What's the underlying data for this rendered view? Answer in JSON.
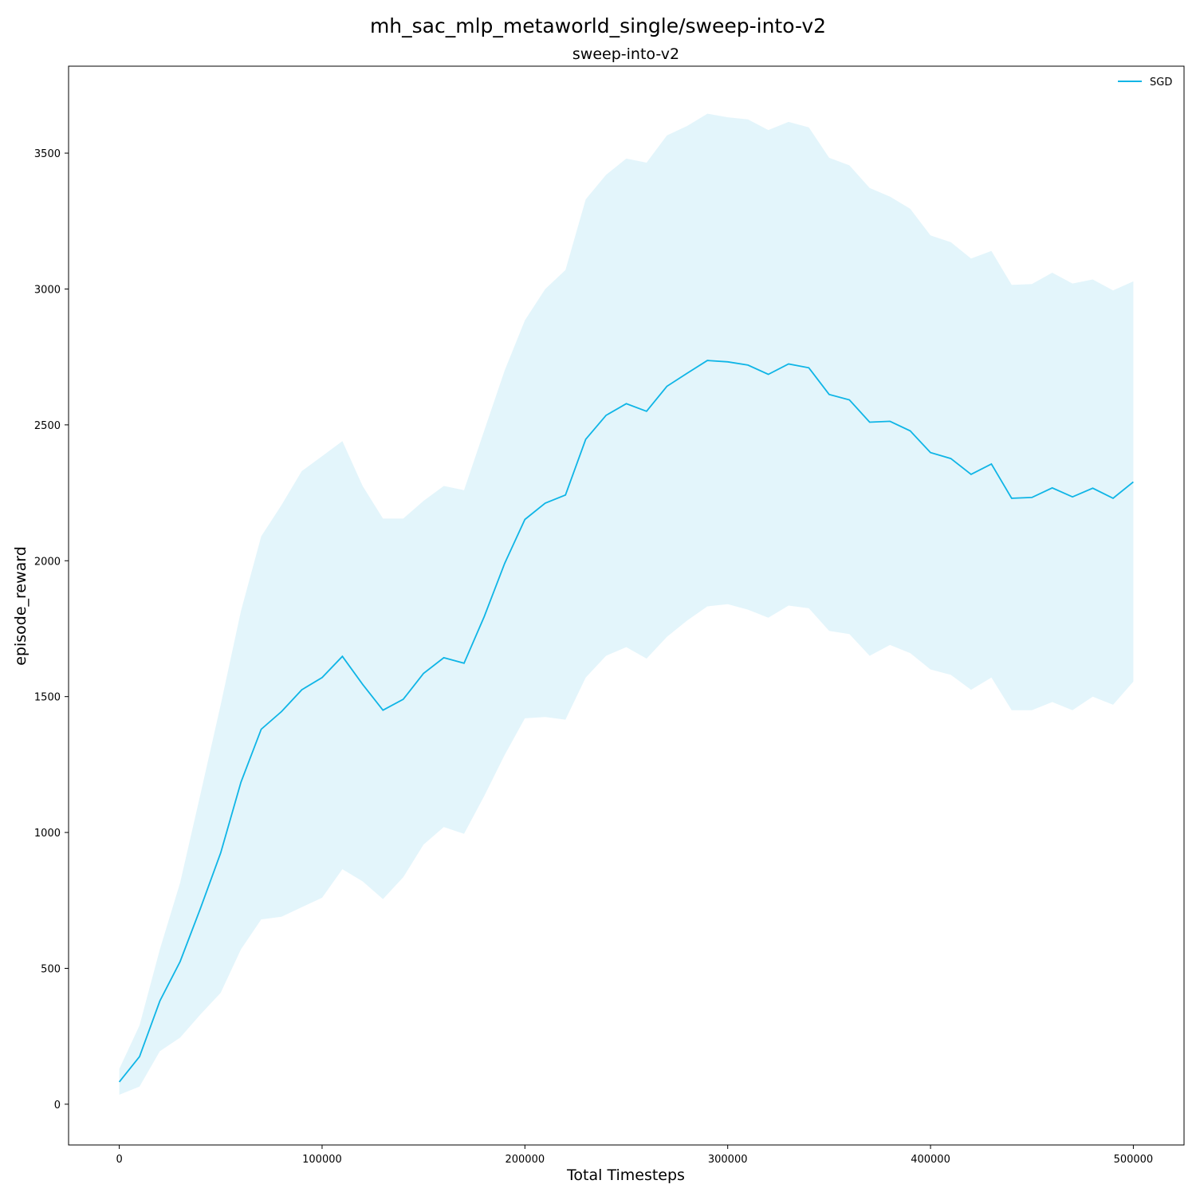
{
  "chart_data": {
    "type": "line",
    "suptitle": "mh_sac_mlp_metaworld_single/sweep-into-v2",
    "title": "sweep-into-v2",
    "xlabel": "Total Timesteps",
    "ylabel": "episode_reward",
    "xlim": [
      -25000,
      525000
    ],
    "ylim": [
      -150,
      3820
    ],
    "xticks": [
      0,
      100000,
      200000,
      300000,
      400000,
      500000
    ],
    "yticks": [
      0,
      500,
      1000,
      1500,
      2000,
      2500,
      3000,
      3500
    ],
    "grid": false,
    "legend_position": "top-right",
    "series": [
      {
        "name": "SGD",
        "color": "#0fb5e6",
        "band_color": "#e3f5fb",
        "x": [
          0,
          10000,
          20000,
          30000,
          40000,
          50000,
          60000,
          70000,
          80000,
          90000,
          100000,
          110000,
          120000,
          130000,
          140000,
          150000,
          160000,
          170000,
          180000,
          190000,
          200000,
          210000,
          220000,
          230000,
          240000,
          250000,
          260000,
          270000,
          280000,
          290000,
          300000,
          310000,
          320000,
          330000,
          340000,
          350000,
          360000,
          370000,
          380000,
          390000,
          400000,
          410000,
          420000,
          430000,
          440000,
          450000,
          460000,
          470000,
          480000,
          490000,
          500000
        ],
        "y": [
          82,
          175,
          380,
          525,
          720,
          925,
          1185,
          1380,
          1445,
          1525,
          1570,
          1648,
          1545,
          1450,
          1490,
          1585,
          1643,
          1623,
          1795,
          1990,
          2152,
          2212,
          2242,
          2447,
          2535,
          2578,
          2550,
          2642,
          2690,
          2737,
          2732,
          2720,
          2686,
          2724,
          2710,
          2612,
          2592,
          2510,
          2513,
          2478,
          2398,
          2376,
          2318,
          2356,
          2230,
          2233,
          2268,
          2235,
          2267,
          2230,
          2290
        ],
        "upper": [
          130,
          290,
          570,
          815,
          1140,
          1470,
          1815,
          2090,
          2205,
          2330,
          2385,
          2440,
          2275,
          2155,
          2155,
          2220,
          2275,
          2260,
          2480,
          2700,
          2885,
          3000,
          3070,
          3330,
          3420,
          3480,
          3465,
          3565,
          3600,
          3645,
          3632,
          3624,
          3585,
          3615,
          3595,
          3483,
          3455,
          3372,
          3340,
          3295,
          3197,
          3172,
          3112,
          3140,
          3015,
          3018,
          3060,
          3020,
          3035,
          2995,
          3028
        ],
        "lower": [
          35,
          65,
          195,
          245,
          330,
          410,
          570,
          680,
          690,
          725,
          760,
          865,
          820,
          755,
          835,
          955,
          1020,
          995,
          1135,
          1285,
          1420,
          1425,
          1415,
          1570,
          1650,
          1682,
          1640,
          1720,
          1780,
          1832,
          1840,
          1820,
          1790,
          1835,
          1825,
          1742,
          1730,
          1650,
          1690,
          1660,
          1600,
          1580,
          1525,
          1570,
          1450,
          1450,
          1480,
          1450,
          1500,
          1470,
          1555
        ]
      }
    ]
  }
}
